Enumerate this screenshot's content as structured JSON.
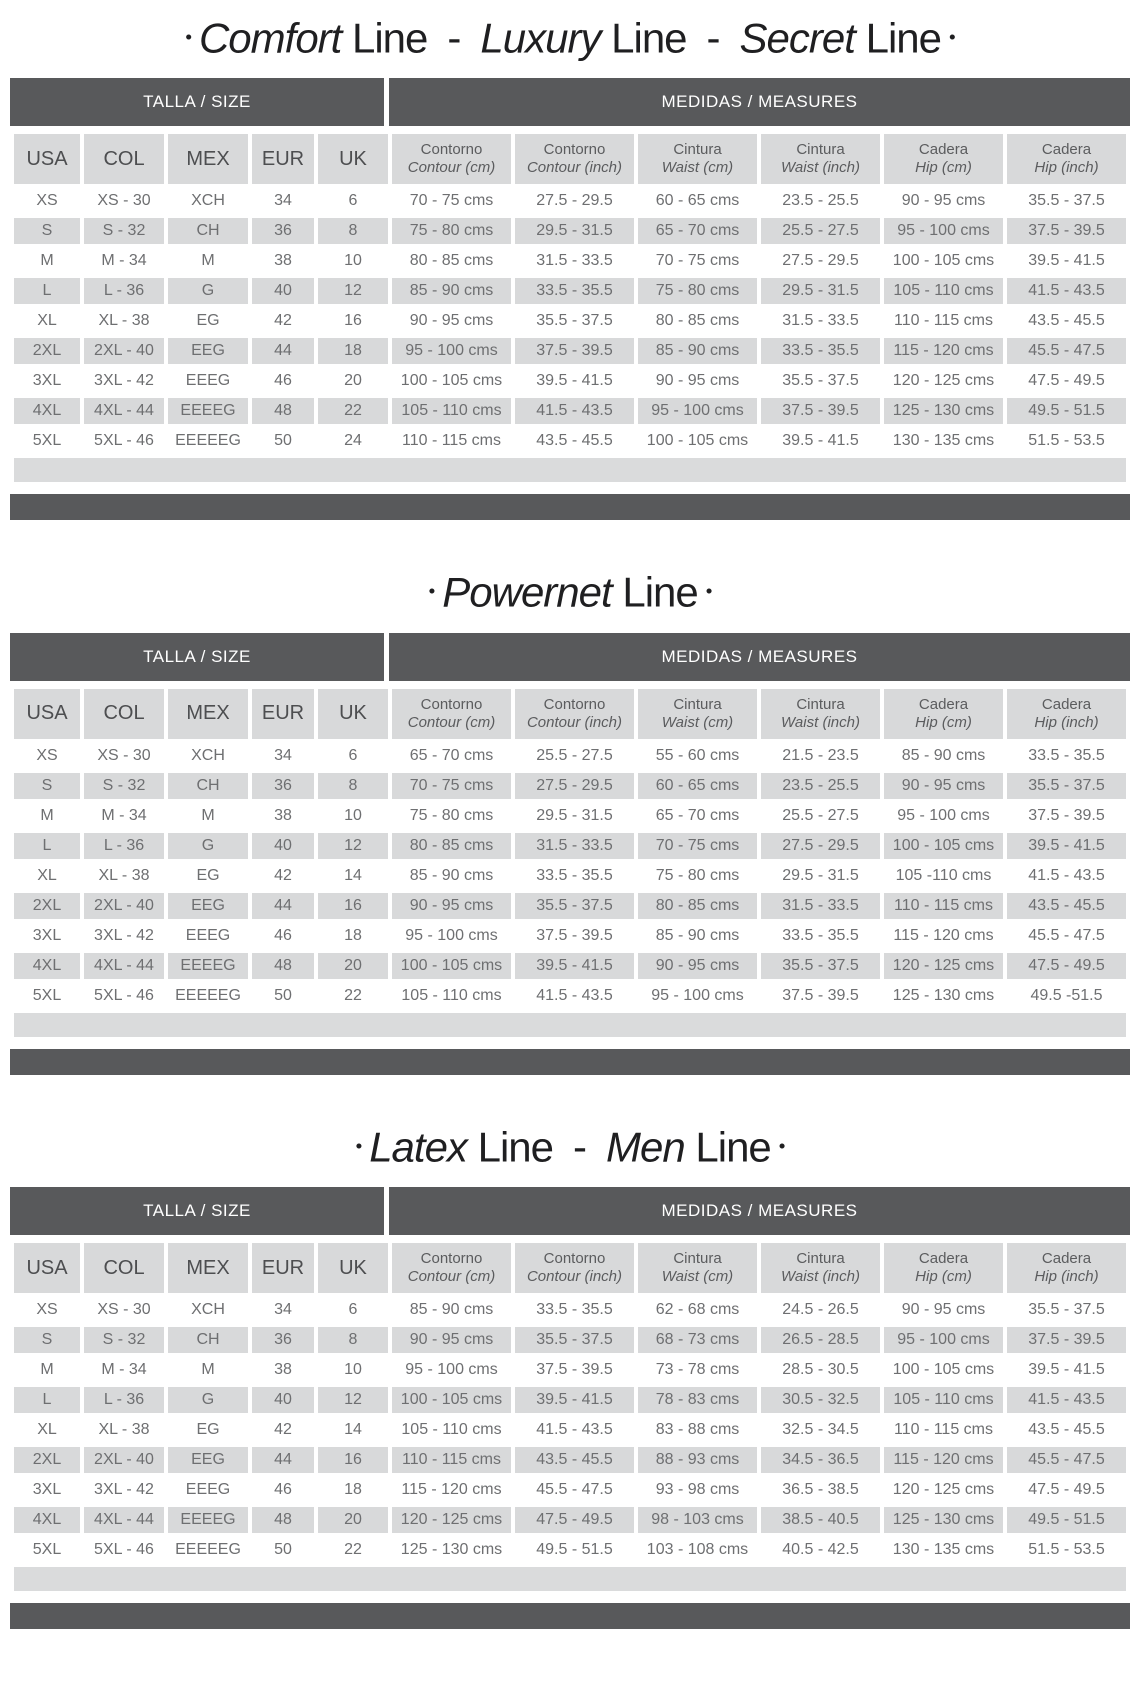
{
  "colors": {
    "header_bg": "#58595b",
    "row_gray": "#d8d9da",
    "row_white": "#ffffff",
    "data_text": "#6e6f71",
    "header_text": "#ffffff",
    "title_text": "#1f1f21"
  },
  "shared": {
    "group_headers": {
      "size": "TALLA / SIZE",
      "measures": "MEDIDAS / MEASURES"
    },
    "size_columns": [
      "USA",
      "COL",
      "MEX",
      "EUR",
      "UK"
    ],
    "measure_columns": [
      {
        "line1": "Contorno",
        "line2": "Contour (cm)"
      },
      {
        "line1": "Contorno",
        "line2": "Contour (inch)"
      },
      {
        "line1": "Cintura",
        "line2": "Waist (cm)"
      },
      {
        "line1": "Cintura",
        "line2": "Waist (inch)"
      },
      {
        "line1": "Cadera",
        "line2": "Hip (cm)"
      },
      {
        "line1": "Cadera",
        "line2": "Hip (inch)"
      }
    ]
  },
  "tables": [
    {
      "name": "comfort-luxury-secret-line",
      "title_segments": [
        {
          "t": "•",
          "s": "bullet"
        },
        {
          "t": "Comfort",
          "s": "italic"
        },
        {
          "t": " Line",
          "s": "regular"
        },
        {
          "t": "-",
          "s": "dash"
        },
        {
          "t": "Luxury",
          "s": "italic"
        },
        {
          "t": " Line",
          "s": "regular"
        },
        {
          "t": "-",
          "s": "dash"
        },
        {
          "t": "Secret",
          "s": "italic"
        },
        {
          "t": " Line",
          "s": "regular"
        },
        {
          "t": "•",
          "s": "bullet"
        }
      ],
      "rows": [
        [
          "XS",
          "XS - 30",
          "XCH",
          "34",
          "6",
          "70 - 75 cms",
          "27.5 - 29.5",
          "60 - 65 cms",
          "23.5 - 25.5",
          "90 - 95 cms",
          "35.5 - 37.5"
        ],
        [
          "S",
          "S - 32",
          "CH",
          "36",
          "8",
          "75 - 80 cms",
          "29.5 - 31.5",
          "65 - 70 cms",
          "25.5 - 27.5",
          "95 - 100 cms",
          "37.5 - 39.5"
        ],
        [
          "M",
          "M - 34",
          "M",
          "38",
          "10",
          "80 - 85 cms",
          "31.5 - 33.5",
          "70 - 75 cms",
          "27.5 - 29.5",
          "100 - 105 cms",
          "39.5 - 41.5"
        ],
        [
          "L",
          "L - 36",
          "G",
          "40",
          "12",
          "85 - 90 cms",
          "33.5 - 35.5",
          "75 - 80 cms",
          "29.5 - 31.5",
          "105 - 110 cms",
          "41.5 - 43.5"
        ],
        [
          "XL",
          "XL - 38",
          "EG",
          "42",
          "16",
          "90 - 95 cms",
          "35.5 - 37.5",
          "80 - 85 cms",
          "31.5 - 33.5",
          "110 - 115 cms",
          "43.5 - 45.5"
        ],
        [
          "2XL",
          "2XL - 40",
          "EEG",
          "44",
          "18",
          "95 - 100 cms",
          "37.5 - 39.5",
          "85 - 90 cms",
          "33.5 - 35.5",
          "115 - 120 cms",
          "45.5 - 47.5"
        ],
        [
          "3XL",
          "3XL - 42",
          "EEEG",
          "46",
          "20",
          "100 - 105 cms",
          "39.5 - 41.5",
          "90 - 95 cms",
          "35.5 - 37.5",
          "120 - 125 cms",
          "47.5 - 49.5"
        ],
        [
          "4XL",
          "4XL - 44",
          "EEEEG",
          "48",
          "22",
          "105 - 110 cms",
          "41.5 - 43.5",
          "95 - 100 cms",
          "37.5 - 39.5",
          "125 - 130 cms",
          "49.5 - 51.5"
        ],
        [
          "5XL",
          "5XL - 46",
          "EEEEEG",
          "50",
          "24",
          "110 - 115 cms",
          "43.5 - 45.5",
          "100 - 105 cms",
          "39.5 - 41.5",
          "130 - 135 cms",
          "51.5 - 53.5"
        ]
      ]
    },
    {
      "name": "powernet-line",
      "title_segments": [
        {
          "t": "•",
          "s": "bullet"
        },
        {
          "t": "Powernet",
          "s": "italic"
        },
        {
          "t": " Line",
          "s": "regular"
        },
        {
          "t": "•",
          "s": "bullet"
        }
      ],
      "rows": [
        [
          "XS",
          "XS - 30",
          "XCH",
          "34",
          "6",
          "65 - 70 cms",
          "25.5 - 27.5",
          "55 - 60 cms",
          "21.5 - 23.5",
          "85 - 90 cms",
          "33.5 - 35.5"
        ],
        [
          "S",
          "S - 32",
          "CH",
          "36",
          "8",
          "70 - 75 cms",
          "27.5 - 29.5",
          "60 - 65 cms",
          "23.5 - 25.5",
          "90 - 95 cms",
          "35.5 - 37.5"
        ],
        [
          "M",
          "M - 34",
          "M",
          "38",
          "10",
          "75 - 80 cms",
          "29.5 - 31.5",
          "65 - 70 cms",
          "25.5 - 27.5",
          "95 - 100 cms",
          "37.5 - 39.5"
        ],
        [
          "L",
          "L - 36",
          "G",
          "40",
          "12",
          "80 - 85 cms",
          "31.5 - 33.5",
          "70 - 75 cms",
          "27.5 - 29.5",
          "100 - 105 cms",
          "39.5 - 41.5"
        ],
        [
          "XL",
          "XL - 38",
          "EG",
          "42",
          "14",
          "85 - 90 cms",
          "33.5 - 35.5",
          "75 - 80 cms",
          "29.5 - 31.5",
          "105 -110 cms",
          "41.5 - 43.5"
        ],
        [
          "2XL",
          "2XL - 40",
          "EEG",
          "44",
          "16",
          "90 - 95 cms",
          "35.5 - 37.5",
          "80 - 85 cms",
          "31.5 - 33.5",
          "110 - 115 cms",
          "43.5 - 45.5"
        ],
        [
          "3XL",
          "3XL - 42",
          "EEEG",
          "46",
          "18",
          "95 - 100 cms",
          "37.5 - 39.5",
          "85 - 90 cms",
          "33.5 - 35.5",
          "115 - 120 cms",
          "45.5 - 47.5"
        ],
        [
          "4XL",
          "4XL - 44",
          "EEEEG",
          "48",
          "20",
          "100 - 105 cms",
          "39.5 - 41.5",
          "90 - 95 cms",
          "35.5 - 37.5",
          "120 - 125 cms",
          "47.5 - 49.5"
        ],
        [
          "5XL",
          "5XL - 46",
          "EEEEEG",
          "50",
          "22",
          "105 - 110 cms",
          "41.5 - 43.5",
          "95 - 100 cms",
          "37.5 - 39.5",
          "125 - 130 cms",
          "49.5 -51.5"
        ]
      ]
    },
    {
      "name": "latex-men-line",
      "title_segments": [
        {
          "t": "•",
          "s": "bullet"
        },
        {
          "t": "Latex",
          "s": "italic"
        },
        {
          "t": " Line",
          "s": "regular"
        },
        {
          "t": "-",
          "s": "dash"
        },
        {
          "t": "Men",
          "s": "italic"
        },
        {
          "t": " Line",
          "s": "regular"
        },
        {
          "t": "•",
          "s": "bullet"
        }
      ],
      "rows": [
        [
          "XS",
          "XS - 30",
          "XCH",
          "34",
          "6",
          "85 - 90 cms",
          "33.5 - 35.5",
          "62 - 68 cms",
          "24.5 - 26.5",
          "90 - 95 cms",
          "35.5 - 37.5"
        ],
        [
          "S",
          "S - 32",
          "CH",
          "36",
          "8",
          "90 - 95 cms",
          "35.5 - 37.5",
          "68 - 73 cms",
          "26.5 - 28.5",
          "95 - 100 cms",
          "37.5 - 39.5"
        ],
        [
          "M",
          "M - 34",
          "M",
          "38",
          "10",
          "95 - 100 cms",
          "37.5 - 39.5",
          "73 - 78 cms",
          "28.5 - 30.5",
          "100 - 105 cms",
          "39.5 - 41.5"
        ],
        [
          "L",
          "L - 36",
          "G",
          "40",
          "12",
          "100 - 105 cms",
          "39.5 - 41.5",
          "78 - 83 cms",
          "30.5 - 32.5",
          "105 - 110 cms",
          "41.5 - 43.5"
        ],
        [
          "XL",
          "XL - 38",
          "EG",
          "42",
          "14",
          "105 - 110 cms",
          "41.5 - 43.5",
          "83 - 88 cms",
          "32.5 - 34.5",
          "110 - 115 cms",
          "43.5 - 45.5"
        ],
        [
          "2XL",
          "2XL - 40",
          "EEG",
          "44",
          "16",
          "110 - 115 cms",
          "43.5 - 45.5",
          "88 - 93 cms",
          "34.5 - 36.5",
          "115 - 120 cms",
          "45.5 - 47.5"
        ],
        [
          "3XL",
          "3XL - 42",
          "EEEG",
          "46",
          "18",
          "115 - 120 cms",
          "45.5 - 47.5",
          "93 - 98 cms",
          "36.5 - 38.5",
          "120 - 125 cms",
          "47.5 - 49.5"
        ],
        [
          "4XL",
          "4XL - 44",
          "EEEEG",
          "48",
          "20",
          "120 - 125 cms",
          "47.5 - 49.5",
          "98 - 103 cms",
          "38.5 - 40.5",
          "125 - 130 cms",
          "49.5 - 51.5"
        ],
        [
          "5XL",
          "5XL - 46",
          "EEEEEG",
          "50",
          "22",
          "125 - 130 cms",
          "49.5 - 51.5",
          "103 - 108 cms",
          "40.5 - 42.5",
          "130 - 135 cms",
          "51.5 - 53.5"
        ]
      ]
    }
  ]
}
